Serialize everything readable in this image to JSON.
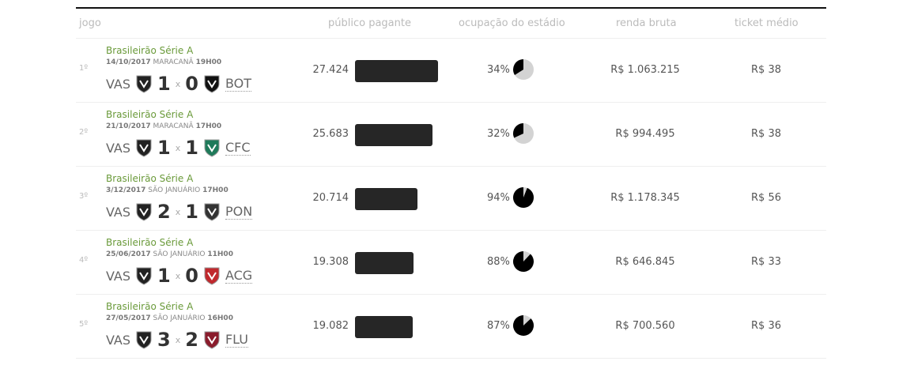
{
  "header": {
    "jogo": "jogo",
    "publico": "público pagante",
    "ocupacao": "ocupação do estádio",
    "renda": "renda bruta",
    "ticket": "ticket médio"
  },
  "rows": [
    {
      "rank": "1º",
      "competition": "Brasileirão Série A",
      "date": "14/10/2017",
      "stadium": "MARACANÃ",
      "time": "19H00",
      "home": "VAS",
      "home_score": "1",
      "sep": "x",
      "away_score": "0",
      "away": "BOT",
      "away_color": "#111111",
      "publico": "27.424",
      "publico_value": 27424,
      "ocupacao": "34%",
      "ocupacao_value": 34,
      "renda": "R$ 1.063.215",
      "ticket": "R$ 38"
    },
    {
      "rank": "2º",
      "competition": "Brasileirão Série A",
      "date": "21/10/2017",
      "stadium": "MARACANÃ",
      "time": "17H00",
      "home": "VAS",
      "home_score": "1",
      "sep": "x",
      "away_score": "1",
      "away": "CFC",
      "away_color": "#1f7a5a",
      "publico": "25.683",
      "publico_value": 25683,
      "ocupacao": "32%",
      "ocupacao_value": 32,
      "renda": "R$ 994.495",
      "ticket": "R$ 38"
    },
    {
      "rank": "3º",
      "competition": "Brasileirão Série A",
      "date": "3/12/2017",
      "stadium": "SÃO JANUÁRIO",
      "time": "17H00",
      "home": "VAS",
      "home_score": "2",
      "sep": "x",
      "away_score": "1",
      "away": "PON",
      "away_color": "#333333",
      "publico": "20.714",
      "publico_value": 20714,
      "ocupacao": "94%",
      "ocupacao_value": 94,
      "renda": "R$ 1.178.345",
      "ticket": "R$ 56"
    },
    {
      "rank": "4º",
      "competition": "Brasileirão Série A",
      "date": "25/06/2017",
      "stadium": "SÃO JANUÁRIO",
      "time": "11H00",
      "home": "VAS",
      "home_score": "1",
      "sep": "x",
      "away_score": "0",
      "away": "ACG",
      "away_color": "#c0282d",
      "publico": "19.308",
      "publico_value": 19308,
      "ocupacao": "88%",
      "ocupacao_value": 88,
      "renda": "R$ 646.845",
      "ticket": "R$ 33"
    },
    {
      "rank": "5º",
      "competition": "Brasileirão Série A",
      "date": "27/05/2017",
      "stadium": "SÃO JANUÁRIO",
      "time": "16H00",
      "home": "VAS",
      "home_score": "3",
      "sep": "x",
      "away_score": "2",
      "away": "FLU",
      "away_color": "#8a1c2c",
      "publico": "19.082",
      "publico_value": 19082,
      "ocupacao": "87%",
      "ocupacao_value": 87,
      "renda": "R$ 700.560",
      "ticket": "R$ 36"
    }
  ]
}
